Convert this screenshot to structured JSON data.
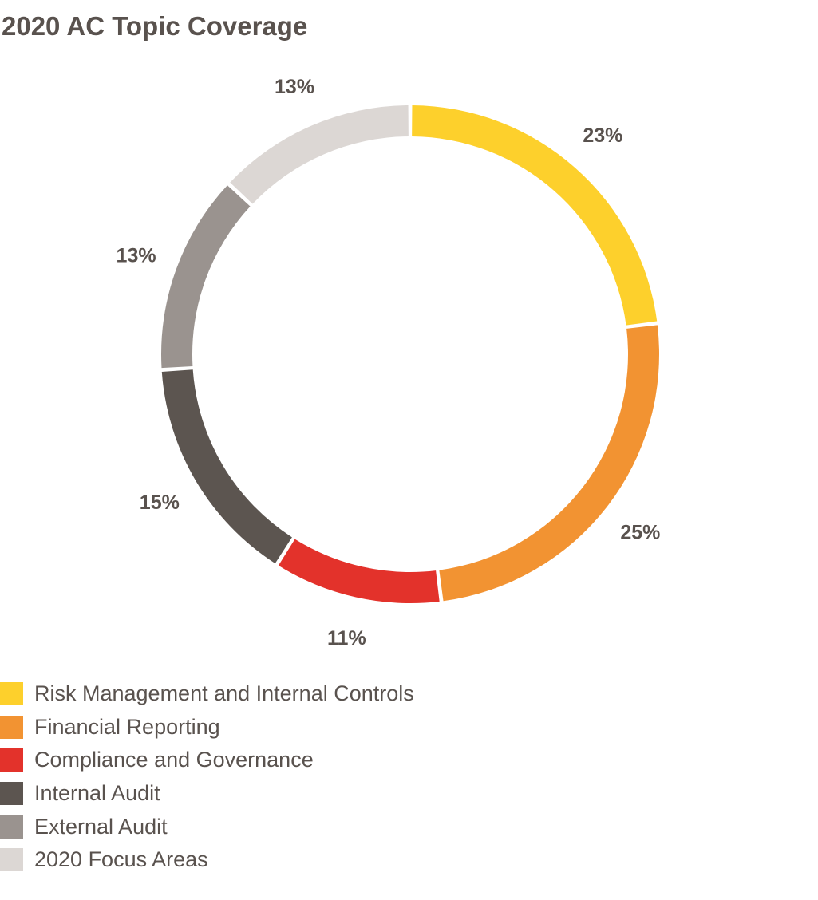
{
  "chart_data": {
    "type": "pie",
    "title": "2020 AC Topic Coverage",
    "categories": [
      "Risk Management and Internal Controls",
      "Financial Reporting",
      "Compliance and Governance",
      "Internal Audit",
      "External Audit",
      "2020 Focus Areas"
    ],
    "values": [
      23,
      25,
      11,
      15,
      13,
      13
    ],
    "value_labels": [
      "23%",
      "25%",
      "11%",
      "15%",
      "13%",
      "13%"
    ],
    "colors": [
      "#fdd02c",
      "#f29332",
      "#e3322b",
      "#5c5550",
      "#9a938f",
      "#dcd7d4"
    ],
    "legend_position": "bottom-left",
    "donut": true
  }
}
